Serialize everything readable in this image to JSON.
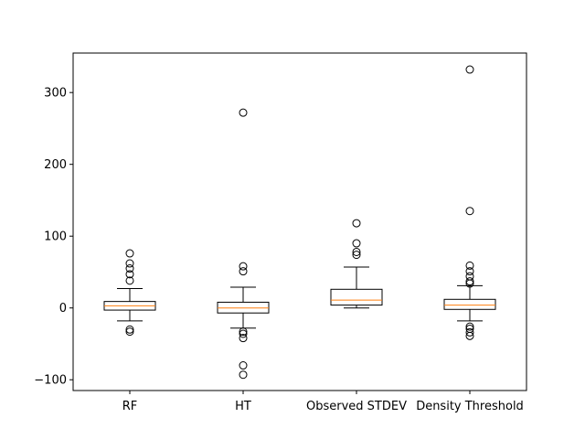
{
  "chart_data": {
    "type": "box",
    "title": "",
    "xlabel": "",
    "ylabel": "",
    "ylim": [
      -115,
      355
    ],
    "yticks": [
      -100,
      0,
      100,
      200,
      300
    ],
    "ytick_labels": [
      "−100",
      "0",
      "100",
      "200",
      "300"
    ],
    "grid": false,
    "categories": [
      "RF",
      "HT",
      "Observed STDEV",
      "Density Threshold"
    ],
    "boxes": [
      {
        "label": "RF",
        "whisker_low": -18,
        "q1": -3,
        "median": 3,
        "q3": 9,
        "whisker_high": 27,
        "outliers": [
          76,
          62,
          55,
          47,
          38,
          -30,
          -33
        ]
      },
      {
        "label": "HT",
        "whisker_low": -28,
        "q1": -7,
        "median": 0,
        "q3": 8,
        "whisker_high": 29,
        "outliers": [
          272,
          58,
          51,
          -33,
          -36,
          -42,
          -80,
          -93
        ]
      },
      {
        "label": "Observed STDEV",
        "whisker_low": 0,
        "q1": 4,
        "median": 11,
        "q3": 26,
        "whisker_high": 57,
        "outliers": [
          118,
          90,
          78,
          74
        ]
      },
      {
        "label": "Density Threshold",
        "whisker_low": -18,
        "q1": -2,
        "median": 4,
        "q3": 12,
        "whisker_high": 31,
        "outliers": [
          332,
          135,
          59,
          51,
          44,
          37,
          34,
          -26,
          -29,
          -34,
          -39
        ]
      }
    ],
    "colors": {
      "box": "#000000",
      "median": "#ff7f0e",
      "outlier": "#000000"
    }
  }
}
